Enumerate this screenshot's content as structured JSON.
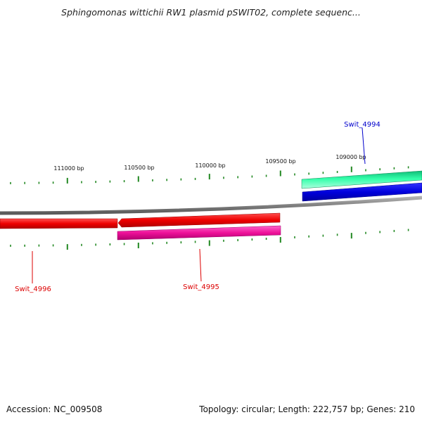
{
  "title": "Sphingomonas wittichii RW1 plasmid pSWIT02, complete sequenc...",
  "footer": {
    "accession": "Accession: NC_009508",
    "summary": "Topology: circular; Length: 222,757 bp; Genes: 210"
  },
  "scale": {
    "tick_labels": [
      "111000 bp",
      "110500 bp",
      "110000 bp",
      "109500 bp",
      "109000 bp"
    ]
  },
  "genes": [
    {
      "id": "Swit_4996",
      "color": "#dd0000",
      "strand": "reverse"
    },
    {
      "id": "Swit_4995",
      "color": "#dd0000",
      "strand": "reverse"
    },
    {
      "id": "Swit_4994",
      "color": "#0000cc",
      "strand": "forward"
    }
  ],
  "colors": {
    "backbone": "#808080",
    "cds_reverse": "#ee0000",
    "rna_reverse": "#ee1199",
    "cds_forward": "#0000dd",
    "rna_forward": "#22ee99",
    "tick": "#228822"
  }
}
